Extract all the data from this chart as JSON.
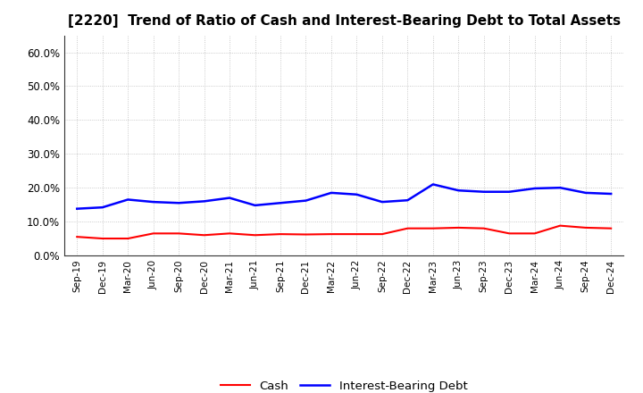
{
  "title": "[2220]  Trend of Ratio of Cash and Interest-Bearing Debt to Total Assets",
  "x_labels": [
    "Sep-19",
    "Dec-19",
    "Mar-20",
    "Jun-20",
    "Sep-20",
    "Dec-20",
    "Mar-21",
    "Jun-21",
    "Sep-21",
    "Dec-21",
    "Mar-22",
    "Jun-22",
    "Sep-22",
    "Dec-22",
    "Mar-23",
    "Jun-23",
    "Sep-23",
    "Dec-23",
    "Mar-24",
    "Jun-24",
    "Sep-24",
    "Dec-24"
  ],
  "cash": [
    0.055,
    0.05,
    0.05,
    0.065,
    0.065,
    0.06,
    0.065,
    0.06,
    0.063,
    0.062,
    0.063,
    0.063,
    0.063,
    0.08,
    0.08,
    0.082,
    0.08,
    0.065,
    0.065,
    0.088,
    0.082,
    0.08
  ],
  "interest_bearing_debt": [
    0.138,
    0.142,
    0.165,
    0.158,
    0.155,
    0.16,
    0.17,
    0.148,
    0.155,
    0.162,
    0.185,
    0.18,
    0.158,
    0.163,
    0.21,
    0.192,
    0.188,
    0.188,
    0.198,
    0.2,
    0.185,
    0.182
  ],
  "cash_color": "#ff0000",
  "debt_color": "#0000ff",
  "ylim": [
    0.0,
    0.65
  ],
  "yticks": [
    0.0,
    0.1,
    0.2,
    0.3,
    0.4,
    0.5,
    0.6
  ],
  "background_color": "#ffffff",
  "grid_color": "#aaaaaa",
  "title_fontsize": 11,
  "legend_labels": [
    "Cash",
    "Interest-Bearing Debt"
  ]
}
